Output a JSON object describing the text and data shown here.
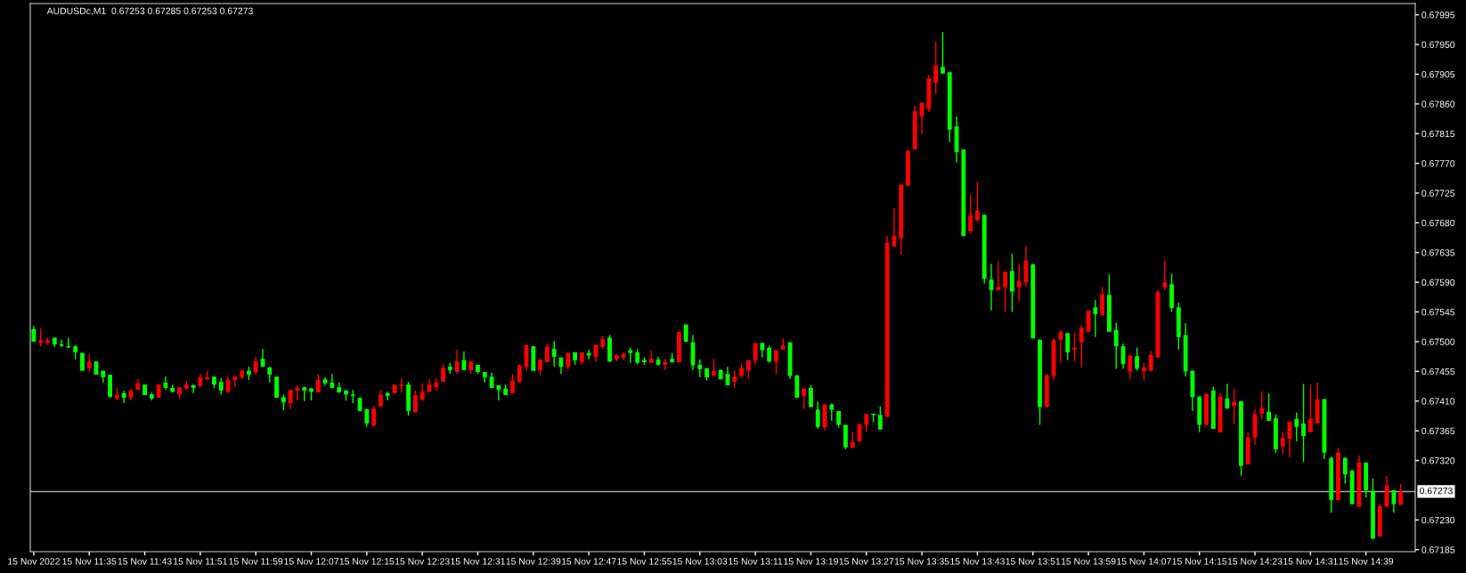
{
  "chart_data": {
    "type": "candlestick",
    "title": "AUDUSDc,M1  0.67253 0.67285 0.67253 0.67273",
    "colors": [
      "#00ff00",
      "#ff0000",
      "#ff0000",
      "#00ff00",
      "#00ff00",
      "#00ff00",
      "#00ff00",
      "#00ff00",
      "#ff0000",
      "#00ff00",
      "#00ff00",
      "#00ff00",
      "#ff0000",
      "#00ff00",
      "#ff0000",
      "#ff0000",
      "#00ff00",
      "#00ff00",
      "#ff0000",
      "#00ff00",
      "#00ff00",
      "#ff0000",
      "#ff0000",
      "#00ff00",
      "#ff0000",
      "#ff0000",
      "#00ff00",
      "#00ff00",
      "#ff0000",
      "#ff0000",
      "#ff0000",
      "#00ff00",
      "#ff0000",
      "#00ff00",
      "#00ff00",
      "#00ff00",
      "#00ff00",
      "#ff0000",
      "#ff0000",
      "#00ff00",
      "#00ff00",
      "#ff0000",
      "#00ff00",
      "#00ff00",
      "#00ff00",
      "#00ff00",
      "#00ff00",
      "#00ff00",
      "#00ff00",
      "#ff0000",
      "#ff0000",
      "#00ff00",
      "#ff0000",
      "#ff0000",
      "#00ff00",
      "#ff0000",
      "#ff0000",
      "#ff0000",
      "#ff0000",
      "#ff0000",
      "#00ff00",
      "#ff0000",
      "#00ff00",
      "#ff0000",
      "#00ff00",
      "#00ff00",
      "#00ff00",
      "#00ff00",
      "#00ff00",
      "#ff0000",
      "#ff0000",
      "#ff0000",
      "#00ff00",
      "#ff0000",
      "#ff0000",
      "#00ff00",
      "#00ff00",
      "#ff0000",
      "#00ff00",
      "#ff0000",
      "#00ff00",
      "#ff0000",
      "#ff0000",
      "#00ff00",
      "#ff0000",
      "#ff0000",
      "#00ff00",
      "#00ff00",
      "#00ff00",
      "#ff0000",
      "#00ff00",
      "#ff0000",
      "#00ff00",
      "#ff0000",
      "#00ff00",
      "#00ff00",
      "#00ff00",
      "#00ff00",
      "#ff0000",
      "#00ff00",
      "#00ff00",
      "#ff0000",
      "#ff0000",
      "#ff0000",
      "#ff0000",
      "#00ff00",
      "#00ff00",
      "#ff0000",
      "#ff0000",
      "#00ff00",
      "#00ff00",
      "#ff0000",
      "#00ff00",
      "#00ff00",
      "#ff0000",
      "#00ff00",
      "#00ff00",
      "#00ff00",
      "#ff0000",
      "#ff0000",
      "#ff0000",
      "#00ff00",
      "#00ff00",
      "#ff0000",
      "#ff0000",
      "#ff0000",
      "#ff0000",
      "#ff0000",
      "#ff0000",
      "#ff0000",
      "#ff0000",
      "#00ff00",
      "#00ff00",
      "#00ff00",
      "#00ff00",
      "#ff0000",
      "#ff0000",
      "#00ff00",
      "#00ff00",
      "#ff0000",
      "#ff0000",
      "#00ff00",
      "#ff0000",
      "#ff0000",
      "#00ff00",
      "#00ff00",
      "#ff0000",
      "#ff0000",
      "#ff0000",
      "#00ff00",
      "#ff0000",
      "#ff0000",
      "#ff0000",
      "#00ff00",
      "#ff0000",
      "#00ff00",
      "#00ff00",
      "#00ff00",
      "#ff0000",
      "#00ff00",
      "#ff0000",
      "#ff0000",
      "#ff0000",
      "#ff0000",
      "#00ff00",
      "#00ff00",
      "#00ff00",
      "#00ff00",
      "#00ff00",
      "#ff0000",
      "#00ff00",
      "#ff0000",
      "#00ff00",
      "#ff0000",
      "#00ff00",
      "#ff0000",
      "#ff0000",
      "#ff0000",
      "#00ff00",
      "#00ff00",
      "#ff0000",
      "#ff0000",
      "#00ff00",
      "#00ff00",
      "#ff0000",
      "#ff0000",
      "#00ff00",
      "#00ff00",
      "#ff0000",
      "#00ff00",
      "#00ff00",
      "#ff0000",
      "#00ff00",
      "#00ff00",
      "#ff0000",
      "#ff0000",
      "#00ff00",
      "#ff0000"
    ],
    "categories": [
      "15 Nov 2022",
      null,
      null,
      null,
      null,
      null,
      null,
      null,
      "15 Nov 11:35",
      null,
      null,
      null,
      null,
      null,
      null,
      null,
      "15 Nov 11:43",
      null,
      null,
      null,
      null,
      null,
      null,
      null,
      "15 Nov 11:51",
      null,
      null,
      null,
      null,
      null,
      null,
      null,
      "15 Nov 11:59",
      null,
      null,
      null,
      null,
      null,
      null,
      null,
      "15 Nov 12:07",
      null,
      null,
      null,
      null,
      null,
      null,
      null,
      "15 Nov 12:15",
      null,
      null,
      null,
      null,
      null,
      null,
      null,
      "15 Nov 12:23",
      null,
      null,
      null,
      null,
      null,
      null,
      null,
      "15 Nov 12:31",
      null,
      null,
      null,
      null,
      null,
      null,
      null,
      "15 Nov 12:39",
      null,
      null,
      null,
      null,
      null,
      null,
      null,
      "15 Nov 12:47",
      null,
      null,
      null,
      null,
      null,
      null,
      null,
      "15 Nov 12:55",
      null,
      null,
      null,
      null,
      null,
      null,
      null,
      "15 Nov 13:03",
      null,
      null,
      null,
      null,
      null,
      null,
      null,
      "15 Nov 13:11",
      null,
      null,
      null,
      null,
      null,
      null,
      null,
      "15 Nov 13:19",
      null,
      null,
      null,
      null,
      null,
      null,
      null,
      "15 Nov 13:27",
      null,
      null,
      null,
      null,
      null,
      null,
      null,
      "15 Nov 13:35",
      null,
      null,
      null,
      null,
      null,
      null,
      null,
      "15 Nov 13:43",
      null,
      null,
      null,
      null,
      null,
      null,
      null,
      "15 Nov 13:51",
      null,
      null,
      null,
      null,
      null,
      null,
      null,
      "15 Nov 13:59",
      null,
      null,
      null,
      null,
      null,
      null,
      null,
      "15 Nov 14:07",
      null,
      null,
      null,
      null,
      null,
      null,
      null,
      "15 Nov 14:15",
      null,
      null,
      null,
      null,
      null,
      null,
      null,
      "15 Nov 14:23",
      null,
      null,
      null,
      null,
      null,
      null,
      null,
      "15 Nov 14:31",
      null,
      null,
      null,
      null,
      null,
      null,
      null,
      "15 Nov 14:39",
      null,
      null,
      null,
      null,
      null
    ],
    "ohlc": [
      [
        0.67519,
        0.67524,
        0.675,
        0.675
      ],
      [
        0.67498,
        0.6752,
        0.67493,
        0.67502
      ],
      [
        0.67498,
        0.67506,
        0.67495,
        0.67502
      ],
      [
        0.67506,
        0.67506,
        0.67492,
        0.67496
      ],
      [
        0.67496,
        0.67503,
        0.67492,
        0.67494
      ],
      [
        0.67493,
        0.67506,
        0.67491,
        0.67491
      ],
      [
        0.67493,
        0.67495,
        0.67473,
        0.67484
      ],
      [
        0.67483,
        0.67483,
        0.67456,
        0.67456
      ],
      [
        0.6746,
        0.67481,
        0.67454,
        0.6747
      ],
      [
        0.6747,
        0.6747,
        0.6745,
        0.6745
      ],
      [
        0.67456,
        0.67456,
        0.67438,
        0.67446
      ],
      [
        0.6745,
        0.6745,
        0.67416,
        0.67416
      ],
      [
        0.67414,
        0.6743,
        0.67411,
        0.6742
      ],
      [
        0.67422,
        0.67426,
        0.67407,
        0.67415
      ],
      [
        0.67415,
        0.67429,
        0.67411,
        0.67426
      ],
      [
        0.67427,
        0.67443,
        0.67427,
        0.67437
      ],
      [
        0.67435,
        0.67435,
        0.67419,
        0.67419
      ],
      [
        0.6742,
        0.67423,
        0.67411,
        0.67414
      ],
      [
        0.67415,
        0.67435,
        0.67415,
        0.67435
      ],
      [
        0.67438,
        0.67447,
        0.67427,
        0.6743
      ],
      [
        0.6743,
        0.67435,
        0.67423,
        0.67424
      ],
      [
        0.6742,
        0.67431,
        0.67414,
        0.67431
      ],
      [
        0.67429,
        0.67441,
        0.67427,
        0.67435
      ],
      [
        0.67434,
        0.67435,
        0.67422,
        0.6743
      ],
      [
        0.67433,
        0.67451,
        0.67431,
        0.67446
      ],
      [
        0.67443,
        0.67456,
        0.67442,
        0.67446
      ],
      [
        0.67447,
        0.67447,
        0.6743,
        0.67435
      ],
      [
        0.67439,
        0.67445,
        0.6742,
        0.67426
      ],
      [
        0.67424,
        0.67447,
        0.67422,
        0.67442
      ],
      [
        0.67442,
        0.67447,
        0.67431,
        0.67447
      ],
      [
        0.67446,
        0.67458,
        0.67443,
        0.67456
      ],
      [
        0.67456,
        0.67462,
        0.67442,
        0.6745
      ],
      [
        0.67454,
        0.67477,
        0.6745,
        0.6747
      ],
      [
        0.67474,
        0.67489,
        0.67462,
        0.67462
      ],
      [
        0.67461,
        0.67462,
        0.67438,
        0.6745
      ],
      [
        0.67447,
        0.67447,
        0.67415,
        0.67415
      ],
      [
        0.67416,
        0.6742,
        0.67396,
        0.67408
      ],
      [
        0.67407,
        0.67427,
        0.67398,
        0.67427
      ],
      [
        0.67426,
        0.67434,
        0.67411,
        0.6743
      ],
      [
        0.67431,
        0.67431,
        0.6741,
        0.67426
      ],
      [
        0.67429,
        0.6743,
        0.67411,
        0.67424
      ],
      [
        0.67423,
        0.67451,
        0.67423,
        0.67442
      ],
      [
        0.67443,
        0.67446,
        0.67434,
        0.67437
      ],
      [
        0.67438,
        0.67451,
        0.6743,
        0.6743
      ],
      [
        0.67431,
        0.67438,
        0.67423,
        0.67423
      ],
      [
        0.67426,
        0.67427,
        0.67411,
        0.6742
      ],
      [
        0.6742,
        0.67427,
        0.67407,
        0.67418
      ],
      [
        0.67415,
        0.67415,
        0.67395,
        0.67395
      ],
      [
        0.67398,
        0.67398,
        0.67371,
        0.67376
      ],
      [
        0.67373,
        0.67403,
        0.67372,
        0.67399
      ],
      [
        0.67402,
        0.67427,
        0.67402,
        0.6742
      ],
      [
        0.67422,
        0.67424,
        0.67411,
        0.67418
      ],
      [
        0.67422,
        0.67435,
        0.67422,
        0.67435
      ],
      [
        0.67433,
        0.67445,
        0.67423,
        0.67435
      ],
      [
        0.67435,
        0.67439,
        0.67388,
        0.67395
      ],
      [
        0.67393,
        0.67426,
        0.67393,
        0.67419
      ],
      [
        0.67412,
        0.67437,
        0.6741,
        0.67424
      ],
      [
        0.67424,
        0.67443,
        0.67424,
        0.67435
      ],
      [
        0.67431,
        0.67445,
        0.67426,
        0.67438
      ],
      [
        0.67439,
        0.67466,
        0.67439,
        0.6746
      ],
      [
        0.67462,
        0.67468,
        0.67451,
        0.67457
      ],
      [
        0.67454,
        0.67488,
        0.67451,
        0.6747
      ],
      [
        0.67472,
        0.67485,
        0.67457,
        0.67457
      ],
      [
        0.67457,
        0.6747,
        0.67451,
        0.6747
      ],
      [
        0.67465,
        0.67465,
        0.67451,
        0.67454
      ],
      [
        0.67454,
        0.67454,
        0.67438,
        0.67446
      ],
      [
        0.67447,
        0.67453,
        0.6743,
        0.6743
      ],
      [
        0.67434,
        0.67434,
        0.67411,
        0.67427
      ],
      [
        0.67429,
        0.67435,
        0.67419,
        0.67419
      ],
      [
        0.67422,
        0.67451,
        0.67422,
        0.67441
      ],
      [
        0.67439,
        0.67466,
        0.67438,
        0.67464
      ],
      [
        0.67462,
        0.67495,
        0.67456,
        0.67495
      ],
      [
        0.67493,
        0.67493,
        0.67456,
        0.67456
      ],
      [
        0.67457,
        0.67473,
        0.67449,
        0.67473
      ],
      [
        0.67469,
        0.67497,
        0.67469,
        0.67492
      ],
      [
        0.67489,
        0.67501,
        0.67462,
        0.67477
      ],
      [
        0.67476,
        0.67476,
        0.67451,
        0.67462
      ],
      [
        0.67462,
        0.67483,
        0.67458,
        0.67483
      ],
      [
        0.67484,
        0.67484,
        0.67465,
        0.67472
      ],
      [
        0.67469,
        0.67484,
        0.67465,
        0.67484
      ],
      [
        0.67483,
        0.67488,
        0.67473,
        0.67479
      ],
      [
        0.67477,
        0.67496,
        0.67469,
        0.67495
      ],
      [
        0.67492,
        0.67508,
        0.67489,
        0.67504
      ],
      [
        0.67506,
        0.6751,
        0.67469,
        0.6747
      ],
      [
        0.67473,
        0.67481,
        0.6747,
        0.67479
      ],
      [
        0.67476,
        0.67484,
        0.67472,
        0.67481
      ],
      [
        0.67487,
        0.67491,
        0.67468,
        0.67483
      ],
      [
        0.67484,
        0.67489,
        0.67466,
        0.67468
      ],
      [
        0.67472,
        0.67476,
        0.67465,
        0.67469
      ],
      [
        0.67468,
        0.67487,
        0.67468,
        0.67474
      ],
      [
        0.67473,
        0.67477,
        0.67464,
        0.67465
      ],
      [
        0.67465,
        0.67474,
        0.67457,
        0.67469
      ],
      [
        0.67474,
        0.67483,
        0.67468,
        0.67469
      ],
      [
        0.67469,
        0.67515,
        0.67469,
        0.67515
      ],
      [
        0.67526,
        0.67526,
        0.67499,
        0.675
      ],
      [
        0.67499,
        0.6751,
        0.67457,
        0.67464
      ],
      [
        0.67465,
        0.67473,
        0.67446,
        0.67458
      ],
      [
        0.6746,
        0.6746,
        0.67441,
        0.67446
      ],
      [
        0.67449,
        0.67474,
        0.67449,
        0.67456
      ],
      [
        0.67457,
        0.67458,
        0.67443,
        0.67443
      ],
      [
        0.67451,
        0.67462,
        0.67434,
        0.67434
      ],
      [
        0.67439,
        0.67456,
        0.6743,
        0.67447
      ],
      [
        0.67448,
        0.67467,
        0.67445,
        0.6746
      ],
      [
        0.67456,
        0.67472,
        0.67444,
        0.67472
      ],
      [
        0.67472,
        0.67498,
        0.67465,
        0.67498
      ],
      [
        0.67498,
        0.67498,
        0.67476,
        0.67487
      ],
      [
        0.67491,
        0.67494,
        0.67468,
        0.6747
      ],
      [
        0.6747,
        0.67487,
        0.67451,
        0.67487
      ],
      [
        0.67488,
        0.67505,
        0.67488,
        0.67494
      ],
      [
        0.67499,
        0.67499,
        0.67443,
        0.67448
      ],
      [
        0.67449,
        0.67449,
        0.67415,
        0.67415
      ],
      [
        0.67418,
        0.67429,
        0.67398,
        0.67429
      ],
      [
        0.6743,
        0.67434,
        0.67401,
        0.67401
      ],
      [
        0.67397,
        0.67409,
        0.67368,
        0.67371
      ],
      [
        0.6737,
        0.67405,
        0.67366,
        0.67405
      ],
      [
        0.67405,
        0.67406,
        0.6738,
        0.67397
      ],
      [
        0.67395,
        0.67395,
        0.6737,
        0.67374
      ],
      [
        0.67374,
        0.67374,
        0.67337,
        0.6734
      ],
      [
        0.67339,
        0.67363,
        0.67339,
        0.67348
      ],
      [
        0.67349,
        0.67375,
        0.67348,
        0.67375
      ],
      [
        0.67374,
        0.67391,
        0.67364,
        0.6739
      ],
      [
        0.67391,
        0.67391,
        0.67378,
        0.67389
      ],
      [
        0.67389,
        0.67402,
        0.67367,
        0.67367
      ],
      [
        0.67386,
        0.6766,
        0.67386,
        0.6765
      ],
      [
        0.67644,
        0.67702,
        0.67644,
        0.6766
      ],
      [
        0.67657,
        0.67738,
        0.67632,
        0.67738
      ],
      [
        0.67736,
        0.67791,
        0.67736,
        0.67789
      ],
      [
        0.67791,
        0.67857,
        0.67791,
        0.67849
      ],
      [
        0.67841,
        0.67862,
        0.67814,
        0.67862
      ],
      [
        0.67852,
        0.67904,
        0.67848,
        0.67899
      ],
      [
        0.67892,
        0.67954,
        0.67875,
        0.67918
      ],
      [
        0.67916,
        0.67969,
        0.67906,
        0.67906
      ],
      [
        0.67908,
        0.67908,
        0.67802,
        0.67821
      ],
      [
        0.67826,
        0.67841,
        0.67771,
        0.67787
      ],
      [
        0.67791,
        0.67791,
        0.6766,
        0.6766
      ],
      [
        0.67667,
        0.67722,
        0.67664,
        0.67691
      ],
      [
        0.67684,
        0.67742,
        0.67681,
        0.67698
      ],
      [
        0.67692,
        0.67692,
        0.67588,
        0.67595
      ],
      [
        0.67594,
        0.67618,
        0.67547,
        0.67578
      ],
      [
        0.67578,
        0.67622,
        0.67578,
        0.67583
      ],
      [
        0.67582,
        0.67606,
        0.67545,
        0.67606
      ],
      [
        0.67607,
        0.67633,
        0.67545,
        0.67576
      ],
      [
        0.67582,
        0.67617,
        0.67561,
        0.67592
      ],
      [
        0.6759,
        0.67645,
        0.67583,
        0.67623
      ],
      [
        0.67617,
        0.67618,
        0.67505,
        0.67505
      ],
      [
        0.67503,
        0.67503,
        0.67374,
        0.67401
      ],
      [
        0.67401,
        0.67451,
        0.67401,
        0.67449
      ],
      [
        0.67448,
        0.67505,
        0.67441,
        0.67502
      ],
      [
        0.67503,
        0.67518,
        0.67468,
        0.67515
      ],
      [
        0.67513,
        0.67513,
        0.67472,
        0.67484
      ],
      [
        0.67488,
        0.67514,
        0.6747,
        0.67491
      ],
      [
        0.67499,
        0.67525,
        0.67461,
        0.67521
      ],
      [
        0.67515,
        0.67547,
        0.67515,
        0.67547
      ],
      [
        0.67552,
        0.67563,
        0.67507,
        0.67542
      ],
      [
        0.6754,
        0.67583,
        0.6754,
        0.67572
      ],
      [
        0.67571,
        0.67602,
        0.67515,
        0.67515
      ],
      [
        0.67518,
        0.67529,
        0.67459,
        0.67493
      ],
      [
        0.67493,
        0.67497,
        0.67459,
        0.67466
      ],
      [
        0.67455,
        0.6748,
        0.67443,
        0.67479
      ],
      [
        0.67478,
        0.67491,
        0.67456,
        0.67459
      ],
      [
        0.67455,
        0.67468,
        0.67441,
        0.67461
      ],
      [
        0.67456,
        0.67486,
        0.67456,
        0.6748
      ],
      [
        0.67476,
        0.67578,
        0.67476,
        0.67575
      ],
      [
        0.67582,
        0.67623,
        0.67578,
        0.6759
      ],
      [
        0.67587,
        0.67603,
        0.67545,
        0.67551
      ],
      [
        0.67552,
        0.67559,
        0.67488,
        0.67507
      ],
      [
        0.6751,
        0.67528,
        0.67447,
        0.67455
      ],
      [
        0.67456,
        0.67456,
        0.67395,
        0.67416
      ],
      [
        0.67417,
        0.67417,
        0.67363,
        0.67374
      ],
      [
        0.67374,
        0.67421,
        0.67373,
        0.67421
      ],
      [
        0.67426,
        0.67432,
        0.67368,
        0.67368
      ],
      [
        0.67363,
        0.67422,
        0.67362,
        0.67417
      ],
      [
        0.67414,
        0.67436,
        0.67398,
        0.67399
      ],
      [
        0.67403,
        0.67429,
        0.67375,
        0.67409
      ],
      [
        0.6741,
        0.6741,
        0.67297,
        0.67312
      ],
      [
        0.67314,
        0.67363,
        0.67314,
        0.67355
      ],
      [
        0.67355,
        0.67398,
        0.67344,
        0.6739
      ],
      [
        0.67391,
        0.67425,
        0.67382,
        0.67399
      ],
      [
        0.67394,
        0.67422,
        0.6738,
        0.6738
      ],
      [
        0.67384,
        0.6739,
        0.67332,
        0.67337
      ],
      [
        0.67341,
        0.67363,
        0.6733,
        0.67355
      ],
      [
        0.67353,
        0.67379,
        0.67324,
        0.67379
      ],
      [
        0.67383,
        0.67393,
        0.67349,
        0.67371
      ],
      [
        0.67376,
        0.67436,
        0.67318,
        0.67357
      ],
      [
        0.67363,
        0.67434,
        0.67363,
        0.67383
      ],
      [
        0.67376,
        0.67438,
        0.67376,
        0.67413
      ],
      [
        0.67413,
        0.67413,
        0.67322,
        0.67332
      ],
      [
        0.67324,
        0.67326,
        0.67241,
        0.6726
      ],
      [
        0.6726,
        0.6734,
        0.6726,
        0.67332
      ],
      [
        0.67324,
        0.67325,
        0.67285,
        0.67299
      ],
      [
        0.67305,
        0.67305,
        0.67254,
        0.67254
      ],
      [
        0.6725,
        0.67328,
        0.6725,
        0.67317
      ],
      [
        0.67317,
        0.67317,
        0.67264,
        0.67275
      ],
      [
        0.67274,
        0.67293,
        0.672,
        0.67202
      ],
      [
        0.67205,
        0.67254,
        0.67205,
        0.67251
      ],
      [
        0.6725,
        0.67297,
        0.6725,
        0.67282
      ],
      [
        0.67275,
        0.67275,
        0.67241,
        0.67254
      ],
      [
        0.67253,
        0.67285,
        0.67253,
        0.67273
      ]
    ],
    "ylim": [
      0.67182,
      0.68012
    ],
    "yticks": [
      0.67185,
      {
        "value": 0.6723,
        "label": "0.67230"
      },
      {
        "value": 0.6732,
        "label": "0.67320"
      },
      0.67365,
      {
        "value": 0.6741,
        "label": "0.67410"
      },
      0.67455,
      {
        "value": 0.675,
        "label": "0.67500"
      },
      0.67545,
      {
        "value": 0.6759,
        "label": "0.67590"
      },
      0.67635,
      {
        "value": 0.6768,
        "label": "0.67680"
      },
      0.67725,
      {
        "value": 0.6777,
        "label": "0.67770"
      },
      0.67815,
      {
        "value": 0.6786,
        "label": "0.67860"
      },
      0.67905,
      {
        "value": 0.6795,
        "label": "0.67950"
      },
      0.67995
    ],
    "ref_lines": [
      {
        "axis": "y",
        "value": 0.67273,
        "label": "0.67273",
        "color": "#a0a8b0"
      }
    ]
  }
}
